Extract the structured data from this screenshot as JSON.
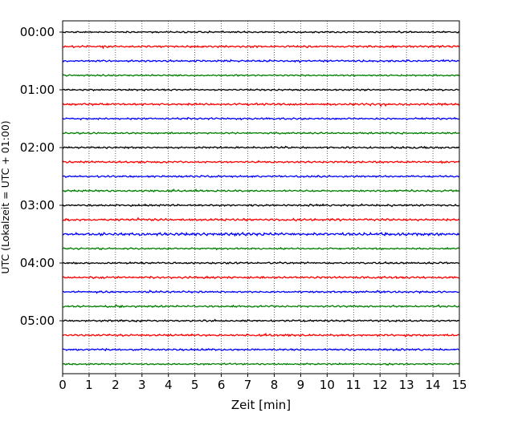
{
  "chart_data": {
    "type": "line",
    "title": "",
    "xlabel": "Zeit  [min]",
    "ylabel": "UTC (Lokalzeit = UTC + 01:00)",
    "xlim": [
      0,
      15
    ],
    "x_ticks": [
      "0",
      "1",
      "2",
      "3",
      "4",
      "5",
      "6",
      "7",
      "8",
      "9",
      "10",
      "11",
      "12",
      "13",
      "14",
      "15"
    ],
    "y_tick_labels": [
      "00:00",
      "01:00",
      "02:00",
      "03:00",
      "04:00",
      "05:00"
    ],
    "grid": "vertical dotted at each minute",
    "trace_interval_min": 15,
    "trace_count": 24,
    "trace_colors": [
      "#000000",
      "#ff0000",
      "#0000ff",
      "#008000"
    ],
    "traces": [
      {
        "start": "00:00",
        "amplitude": 0.35
      },
      {
        "start": "00:15",
        "amplitude": 0.45
      },
      {
        "start": "00:30",
        "amplitude": 0.4
      },
      {
        "start": "00:45",
        "amplitude": 0.35
      },
      {
        "start": "01:00",
        "amplitude": 0.35
      },
      {
        "start": "01:15",
        "amplitude": 0.45
      },
      {
        "start": "01:30",
        "amplitude": 0.4
      },
      {
        "start": "01:45",
        "amplitude": 0.35
      },
      {
        "start": "02:00",
        "amplitude": 0.4
      },
      {
        "start": "02:15",
        "amplitude": 0.4
      },
      {
        "start": "02:30",
        "amplitude": 0.4
      },
      {
        "start": "02:45",
        "amplitude": 0.4
      },
      {
        "start": "03:00",
        "amplitude": 0.4
      },
      {
        "start": "03:15",
        "amplitude": 0.5
      },
      {
        "start": "03:30",
        "amplitude": 0.6
      },
      {
        "start": "03:45",
        "amplitude": 0.35
      },
      {
        "start": "04:00",
        "amplitude": 0.4
      },
      {
        "start": "04:15",
        "amplitude": 0.45
      },
      {
        "start": "04:30",
        "amplitude": 0.4
      },
      {
        "start": "04:45",
        "amplitude": 0.4
      },
      {
        "start": "05:00",
        "amplitude": 0.4
      },
      {
        "start": "05:15",
        "amplitude": 0.45
      },
      {
        "start": "05:30",
        "amplitude": 0.4
      },
      {
        "start": "05:45",
        "amplitude": 0.35
      }
    ]
  }
}
